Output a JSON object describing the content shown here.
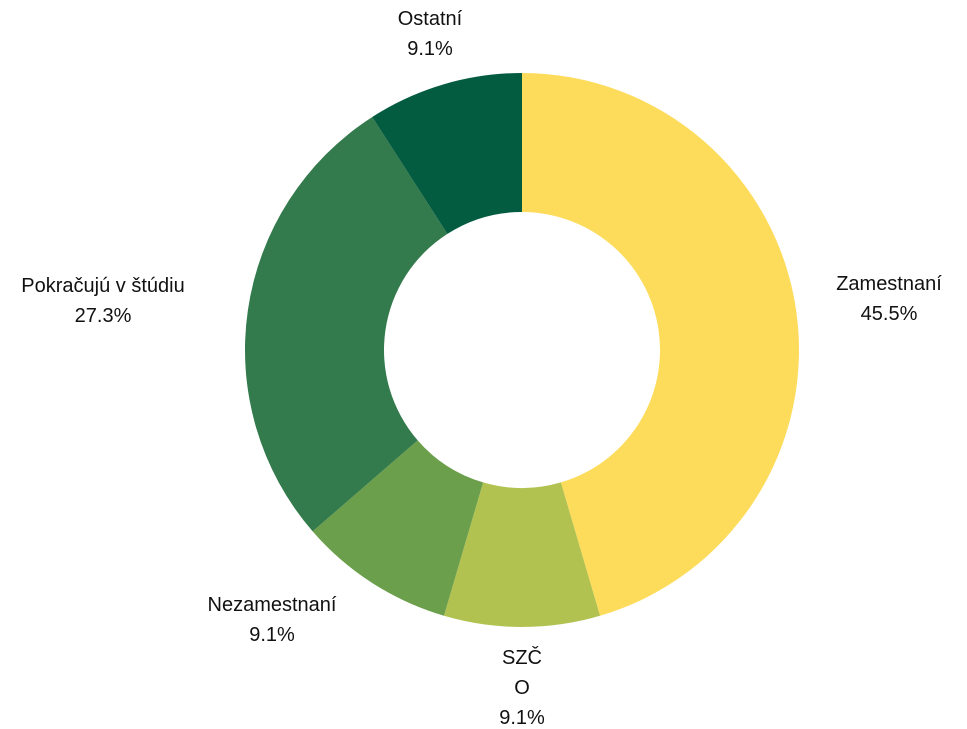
{
  "chart_data": {
    "type": "pie",
    "variant": "donut",
    "title": "",
    "slices": [
      {
        "name": "Zamestnaní",
        "label_lines": [
          "Zamestnaní"
        ],
        "value": 45.5,
        "percent_label": "45.5%",
        "color": "#FDDC5C"
      },
      {
        "name": "SZČO",
        "label_lines": [
          "SZČ",
          "O"
        ],
        "value": 9.1,
        "percent_label": "9.1%",
        "color": "#B1C250"
      },
      {
        "name": "Nezamestnaní",
        "label_lines": [
          "Nezamestnaní"
        ],
        "value": 9.1,
        "percent_label": "9.1%",
        "color": "#6B9F4B"
      },
      {
        "name": "Pokračujú v štúdiu",
        "label_lines": [
          "Pokračujú v štúdiu"
        ],
        "value": 27.3,
        "percent_label": "27.3%",
        "color": "#337A4C"
      },
      {
        "name": "Ostatní",
        "label_lines": [
          "Ostatní"
        ],
        "value": 9.1,
        "percent_label": "9.1%",
        "color": "#035B40"
      }
    ],
    "start_angle": "top",
    "direction": "clockwise",
    "legend": "none"
  }
}
